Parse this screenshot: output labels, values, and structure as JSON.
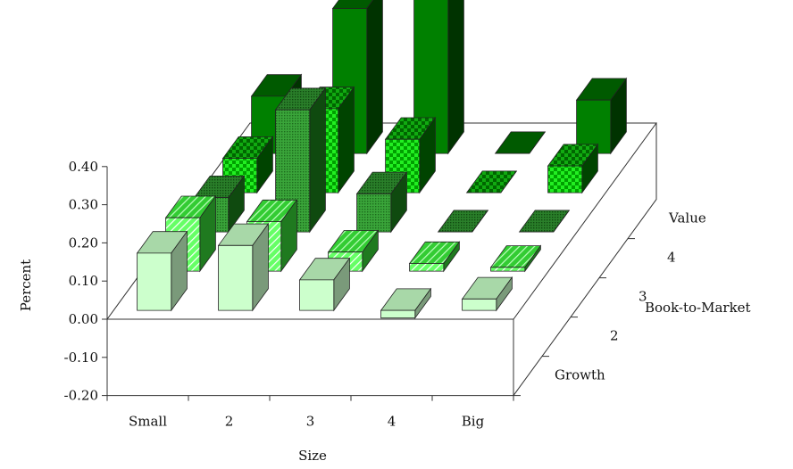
{
  "chart_data": {
    "type": "bar",
    "projection": "3d",
    "ylabel": "Percent",
    "xlabel": "Size",
    "zlabel": "Book-to-Market",
    "yticks": [
      "0.40",
      "0.30",
      "0.20",
      "0.10",
      "0.00",
      "-0.10",
      "-0.20"
    ],
    "ylim": [
      -0.2,
      0.4
    ],
    "x_categories": [
      "Small",
      "2",
      "3",
      "4",
      "Big"
    ],
    "depth_categories": [
      "Growth",
      "2",
      "3",
      "4",
      "Value"
    ],
    "grid": false,
    "series": [
      {
        "pattern": "light",
        "values": [
          0.15,
          0.17,
          0.08,
          -0.02,
          0.03
        ]
      },
      {
        "pattern": "hatch",
        "values": [
          0.14,
          0.13,
          0.05,
          0.02,
          0.01
        ]
      },
      {
        "pattern": "dots",
        "values": [
          0.09,
          0.32,
          0.1,
          0.0,
          0.0
        ]
      },
      {
        "pattern": "check",
        "values": [
          0.09,
          0.22,
          0.14,
          0.0,
          0.07
        ]
      },
      {
        "pattern": "solid",
        "values": [
          0.15,
          0.38,
          0.42,
          0.0,
          0.14
        ]
      }
    ]
  }
}
